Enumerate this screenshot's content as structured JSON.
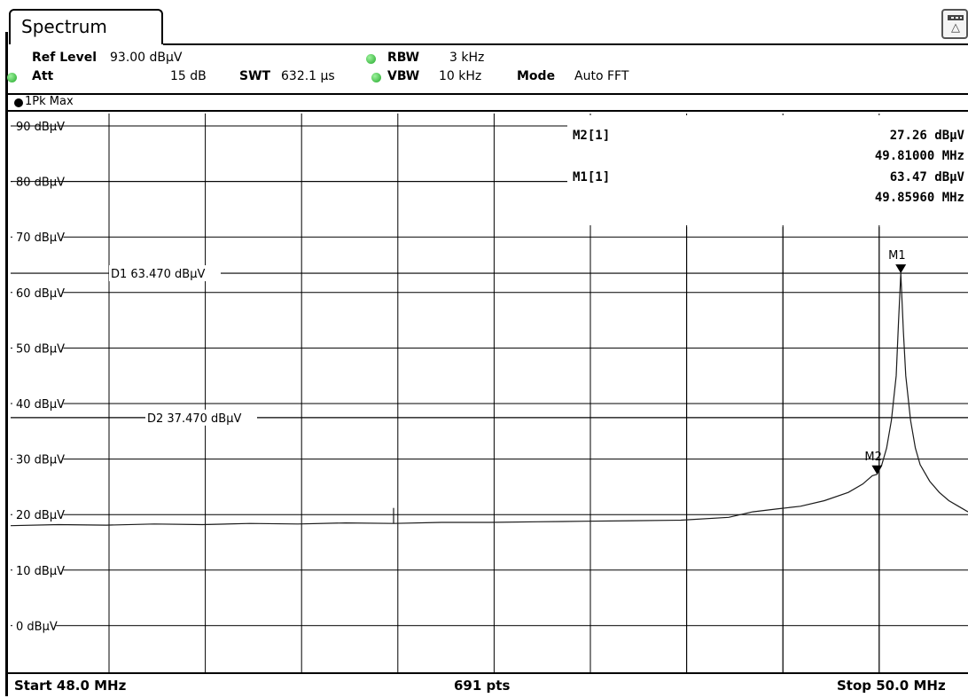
{
  "tab": {
    "label": "Spectrum"
  },
  "params": {
    "ref_level_label": "Ref Level",
    "ref_level_value": "93.00 dBµV",
    "att_label": "Att",
    "att_value": "15 dB",
    "swt_label": "SWT",
    "swt_value": "632.1 µs",
    "rbw_label": "RBW",
    "rbw_value": "3 kHz",
    "vbw_label": "VBW",
    "vbw_value": "10 kHz",
    "mode_label": "Mode",
    "mode_value": "Auto FFT"
  },
  "trace": {
    "label": "1Pk Max"
  },
  "markers_table": [
    {
      "name": "M2[1]",
      "level": "27.26 dBµV",
      "freq": "49.81000 MHz"
    },
    {
      "name": "M1[1]",
      "level": "63.47 dBµV",
      "freq": "49.85960 MHz"
    }
  ],
  "footer": {
    "start": "Start 48.0 MHz",
    "points": "691 pts",
    "stop": "Stop 50.0 MHz"
  },
  "colors": {
    "dot_green": "#22a82a"
  },
  "chart_data": {
    "type": "line",
    "y_tick_labels": [
      "90 dBµV",
      "80 dBµV",
      "70 dBµV",
      "60 dBµV",
      "50 dBµV",
      "40 dBµV",
      "30 dBµV",
      "20 dBµV",
      "10 dBµV",
      "0 dBµV"
    ],
    "y_ticks": [
      90,
      80,
      70,
      60,
      50,
      40,
      30,
      20,
      10,
      0
    ],
    "ylim": [
      -7,
      93
    ],
    "xlim": [
      48.0,
      50.0
    ],
    "grid": true,
    "display_lines": [
      {
        "label": "D1",
        "text": "D1  63.470 dBµV",
        "value": 63.47
      },
      {
        "label": "D2",
        "text": "D2  37.470 dBµV",
        "value": 37.47
      }
    ],
    "markers": [
      {
        "label": "M1",
        "x": 49.8596,
        "y": 63.47
      },
      {
        "label": "M2",
        "x": 49.81,
        "y": 27.26
      }
    ],
    "trace": [
      [
        48.0,
        18.0
      ],
      [
        48.1,
        18.2
      ],
      [
        48.2,
        18.1
      ],
      [
        48.3,
        18.3
      ],
      [
        48.4,
        18.2
      ],
      [
        48.5,
        18.4
      ],
      [
        48.6,
        18.3
      ],
      [
        48.7,
        18.5
      ],
      [
        48.8,
        18.4
      ],
      [
        48.9,
        18.6
      ],
      [
        49.0,
        18.6
      ],
      [
        49.1,
        18.7
      ],
      [
        49.2,
        18.8
      ],
      [
        49.3,
        18.9
      ],
      [
        49.4,
        19.0
      ],
      [
        49.5,
        19.5
      ],
      [
        49.55,
        20.5
      ],
      [
        49.6,
        21.0
      ],
      [
        49.65,
        21.5
      ],
      [
        49.7,
        22.5
      ],
      [
        49.75,
        24.0
      ],
      [
        49.78,
        25.5
      ],
      [
        49.8,
        27.0
      ],
      [
        49.81,
        27.26
      ],
      [
        49.82,
        29.0
      ],
      [
        49.83,
        32.0
      ],
      [
        49.84,
        37.0
      ],
      [
        49.85,
        45.0
      ],
      [
        49.855,
        55.0
      ],
      [
        49.8596,
        63.47
      ],
      [
        49.865,
        53.0
      ],
      [
        49.87,
        45.0
      ],
      [
        49.88,
        37.0
      ],
      [
        49.89,
        32.0
      ],
      [
        49.9,
        29.0
      ],
      [
        49.92,
        26.0
      ],
      [
        49.94,
        24.0
      ],
      [
        49.96,
        22.5
      ],
      [
        49.98,
        21.5
      ],
      [
        50.0,
        20.5
      ]
    ]
  }
}
